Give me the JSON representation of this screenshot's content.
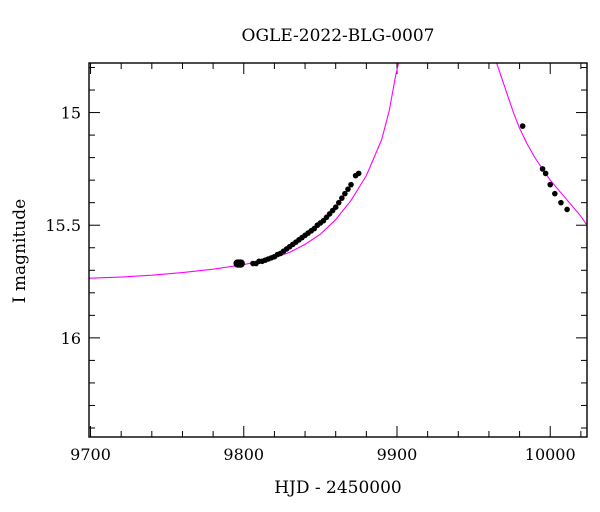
{
  "chart_data": {
    "type": "scatter",
    "title": "OGLE-2022-BLG-0007",
    "xlabel": "HJD - 2450000",
    "ylabel": "I magnitude",
    "xlim": [
      9699,
      10024
    ],
    "ylim": [
      16.44,
      14.78
    ],
    "y_inverted": true,
    "x_ticks": [
      9700,
      9800,
      9900,
      10000
    ],
    "y_ticks": [
      15,
      15.5,
      16
    ],
    "x_tick_labels": [
      "9700",
      "9800",
      "9900",
      "10000"
    ],
    "y_tick_labels": [
      "15",
      "15.5",
      "16"
    ],
    "grid": false,
    "legend": "none",
    "colors": {
      "data": "#000000",
      "model": "#ff00ff"
    },
    "series": [
      {
        "kind": "points",
        "x": [
          9796,
          9797,
          9798,
          9806,
          9808,
          9810,
          9812,
          9814,
          9816,
          9818,
          9820,
          9822,
          9824,
          9826,
          9828,
          9830,
          9832,
          9834,
          9836,
          9838,
          9840,
          9842,
          9844,
          9846,
          9848,
          9850,
          9852,
          9854,
          9856,
          9858,
          9860,
          9862,
          9864,
          9866,
          9868,
          9870,
          9873,
          9875,
          9982,
          9995,
          9997,
          10000,
          10003,
          10007,
          10011
        ],
        "y": [
          15.67,
          15.67,
          15.67,
          15.67,
          15.67,
          15.66,
          15.66,
          15.655,
          15.65,
          15.645,
          15.64,
          15.63,
          15.625,
          15.615,
          15.605,
          15.595,
          15.585,
          15.575,
          15.565,
          15.555,
          15.545,
          15.535,
          15.525,
          15.515,
          15.5,
          15.49,
          15.48,
          15.465,
          15.45,
          15.435,
          15.42,
          15.4,
          15.38,
          15.36,
          15.34,
          15.32,
          15.28,
          15.27,
          15.06,
          15.25,
          15.27,
          15.32,
          15.36,
          15.4,
          15.43
        ]
      },
      {
        "kind": "model",
        "x": [
          9699,
          9720,
          9740,
          9760,
          9780,
          9800,
          9810,
          9820,
          9830,
          9840,
          9850,
          9860,
          9870,
          9880,
          9890,
          9895,
          9899,
          9901,
          9965,
          9968,
          9972,
          9976,
          9980,
          9985,
          9990,
          9995,
          10000,
          10005,
          10010,
          10015,
          10020,
          10024
        ],
        "y": [
          15.735,
          15.73,
          15.722,
          15.71,
          15.695,
          15.675,
          15.66,
          15.645,
          15.62,
          15.585,
          15.54,
          15.475,
          15.39,
          15.28,
          15.12,
          14.99,
          14.84,
          14.78,
          14.78,
          14.84,
          14.92,
          15.0,
          15.07,
          15.14,
          15.2,
          15.25,
          15.3,
          15.34,
          15.38,
          15.42,
          15.46,
          15.5
        ]
      }
    ]
  }
}
